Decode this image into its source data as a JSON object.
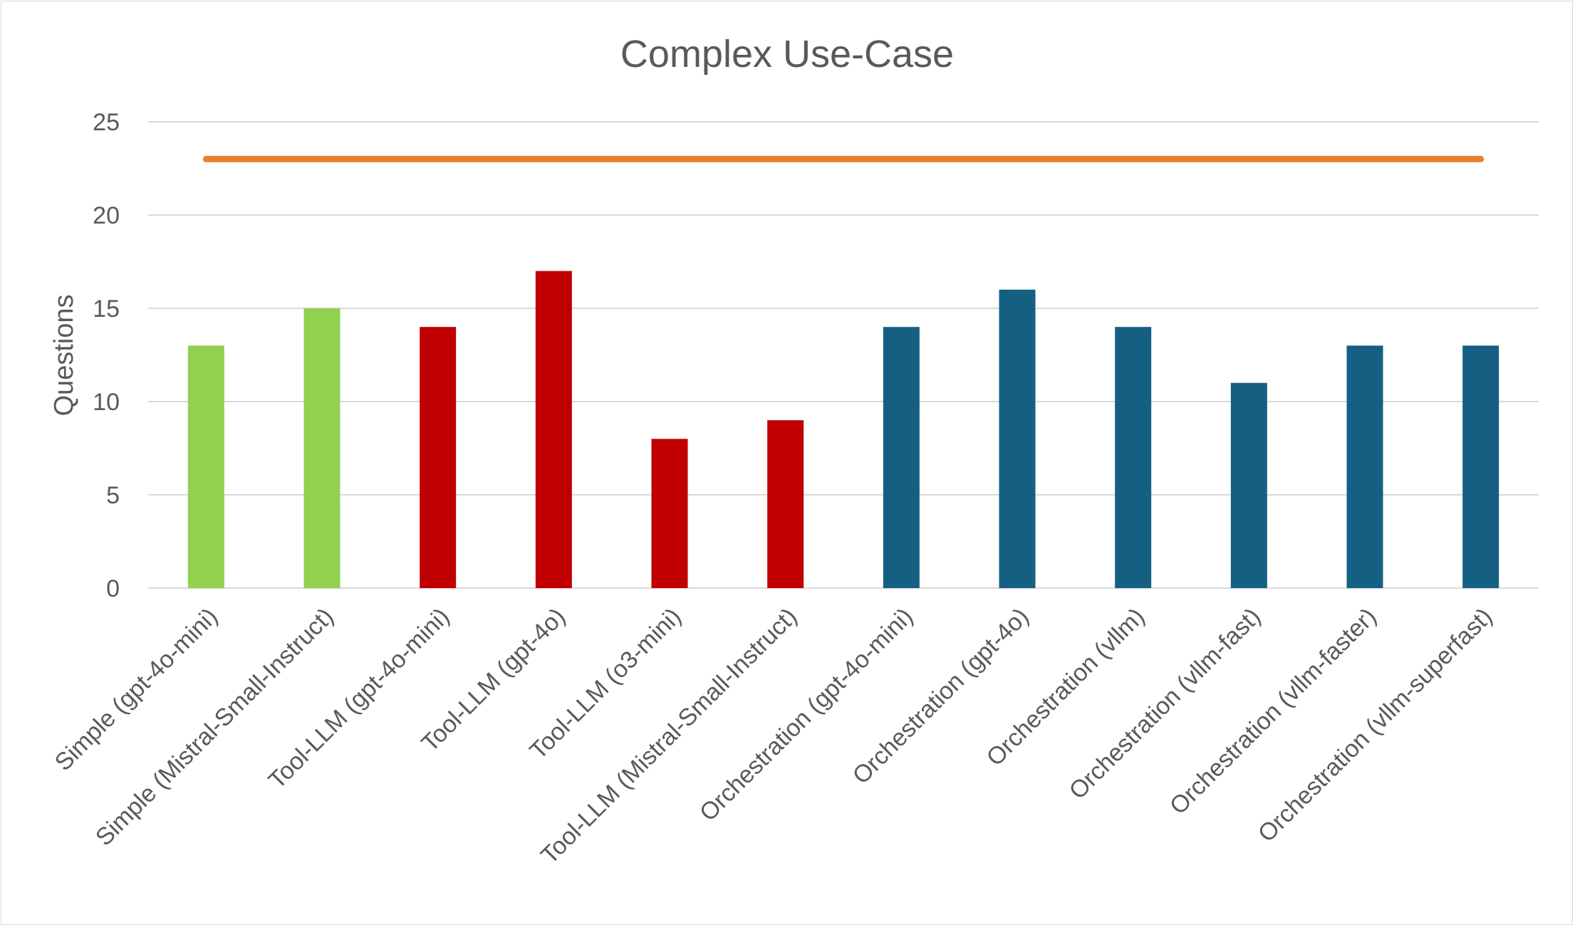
{
  "chart_data": {
    "type": "bar",
    "title": "Complex Use-Case",
    "xlabel": "",
    "ylabel": "Questions",
    "ylim": [
      0,
      25
    ],
    "yticks": [
      0,
      5,
      10,
      15,
      20,
      25
    ],
    "grid": true,
    "legend": "none",
    "categories": [
      "Simple (gpt-4o-mini)",
      "Simple (Mistral-Small-Instruct)",
      "Tool-LLM (gpt-4o-mini)",
      "Tool-LLM (gpt-4o)",
      "Tool-LLM (o3-mini)",
      "Tool-LLM (Mistral-Small-Instruct)",
      "Orchestration (gpt-4o-mini)",
      "Orchestration (gpt-4o)",
      "Orchestration (vllm)",
      "Orchestration (vllm-fast)",
      "Orchestration (vllm-faster)",
      "Orchestration (vllm-superfast)"
    ],
    "values": [
      13,
      15,
      14,
      17,
      8,
      9,
      14,
      16,
      14,
      11,
      13,
      13
    ],
    "bar_colors": [
      "#92d050",
      "#92d050",
      "#c00000",
      "#c00000",
      "#c00000",
      "#c00000",
      "#156082",
      "#156082",
      "#156082",
      "#156082",
      "#156082",
      "#156082"
    ],
    "reference_line": {
      "type": "line",
      "value": 23,
      "color": "#ed7d31"
    }
  },
  "colors": {
    "text": "#595959",
    "grid": "#d9d9d9"
  }
}
